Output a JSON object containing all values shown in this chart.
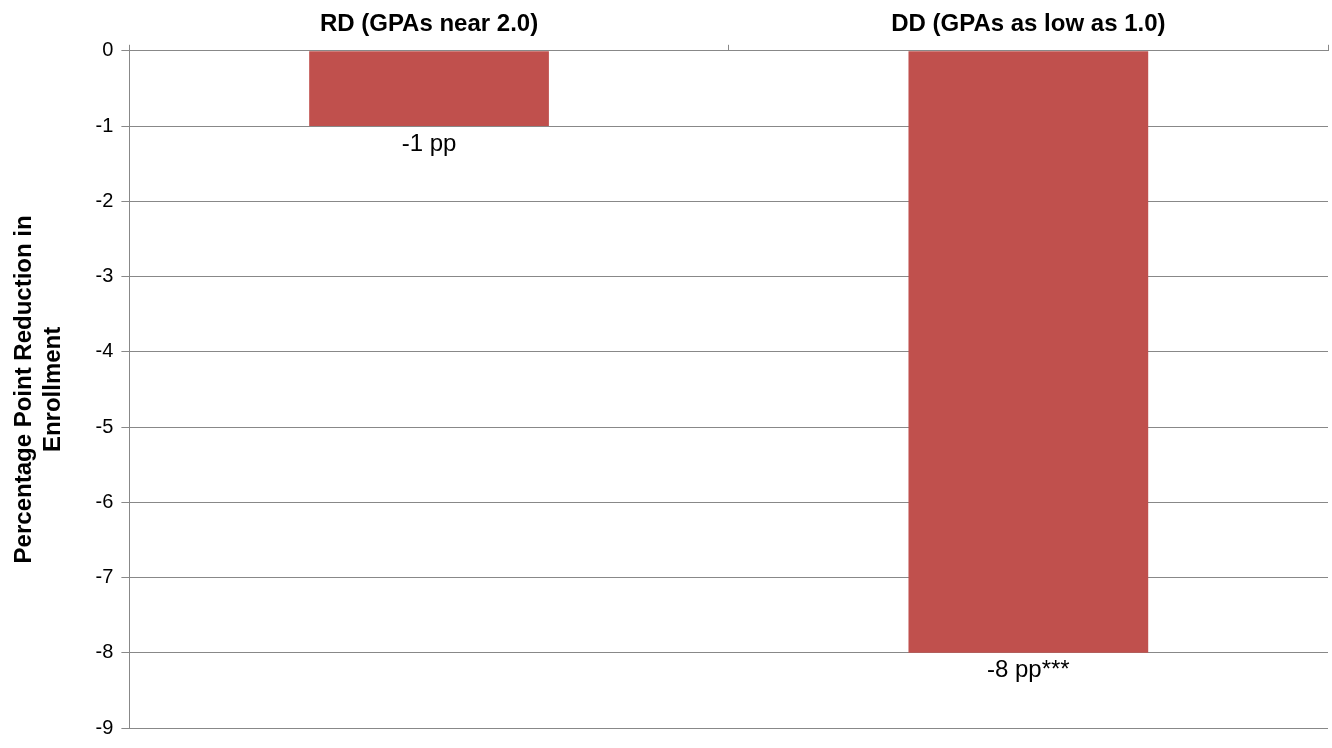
{
  "chart_data": {
    "type": "bar",
    "categories": [
      "RD (GPAs near 2.0)",
      "DD (GPAs as low as 1.0)"
    ],
    "values": [
      -1,
      -8
    ],
    "color": "#c0504d",
    "value_labels": [
      "-1 pp",
      "-8 pp***"
    ],
    "ylabel": "Percentage Point Reduction in Enrollment",
    "ylim": [
      -9,
      0
    ],
    "yticks": [
      0,
      -1,
      -2,
      -3,
      -4,
      -5,
      -6,
      -7,
      -8,
      -9
    ],
    "grid": "y",
    "legend": false
  }
}
